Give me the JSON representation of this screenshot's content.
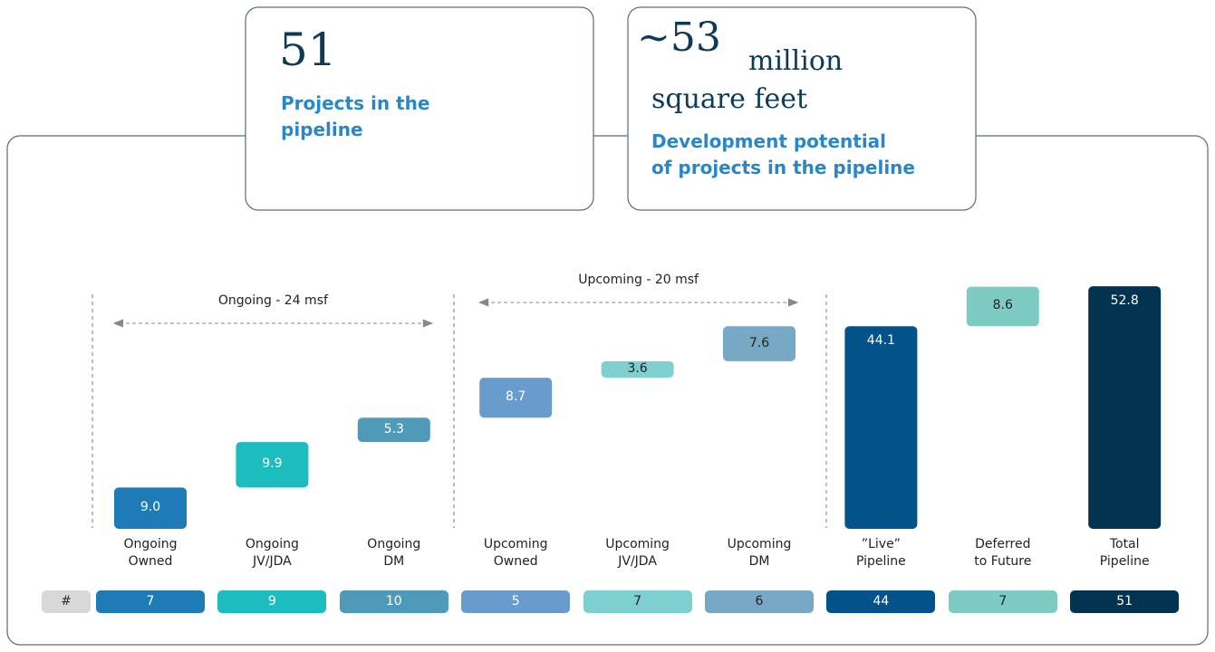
{
  "header": {
    "cards": [
      {
        "number": "51",
        "caption": "Projects in the\npipeline"
      },
      {
        "number": "~53",
        "unit": "million",
        "unit_line2": "square feet",
        "caption": "Development potential\nof projects in the pipeline"
      }
    ]
  },
  "chart_data": {
    "type": "waterfall",
    "categories": [
      "Ongoing\nOwned",
      "Ongoing\nJV/JDA",
      "Ongoing\nDM",
      "Upcoming\nOwned",
      "Upcoming\nJV/JDA",
      "Upcoming\nDM",
      "”Live”\nPipeline",
      "Deferred\nto Future",
      "Total\nPipeline"
    ],
    "values": [
      9.0,
      9.9,
      5.3,
      8.7,
      3.6,
      7.6,
      44.1,
      8.6,
      52.8
    ],
    "value_labels": [
      "9.0",
      "9.9",
      "5.3",
      "8.7",
      "3.6",
      "7.6",
      "44.1",
      "8.6",
      "52.8"
    ],
    "is_total": [
      false,
      false,
      false,
      false,
      false,
      false,
      true,
      false,
      true
    ],
    "colors": [
      "#1f7ab8",
      "#1dbcbf",
      "#4e9ab8",
      "#6a9bcd",
      "#7ecfcf",
      "#77a9c4",
      "#03528a",
      "#7ecbc4",
      "#04334f"
    ],
    "ylim": [
      0,
      55
    ],
    "annotations": [
      {
        "text": "Ongoing - 24 msf",
        "from": 0,
        "to": 2
      },
      {
        "text": "Upcoming - 20 msf",
        "from": 3,
        "to": 5
      }
    ],
    "count_label": "#",
    "counts": [
      7,
      9,
      10,
      5,
      7,
      6,
      44,
      7,
      51
    ]
  }
}
